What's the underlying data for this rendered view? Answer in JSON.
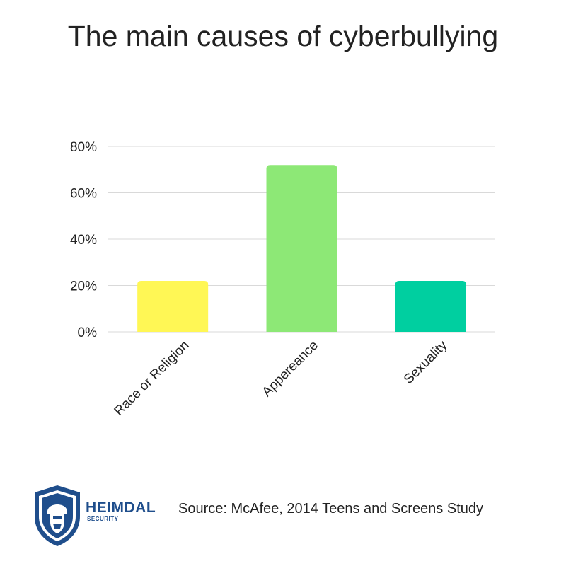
{
  "title": "The main causes of cyberbullying",
  "chart_data": {
    "type": "bar",
    "categories": [
      "Race or Religion",
      "Appereance",
      "Sexuality"
    ],
    "values": [
      22,
      72,
      22
    ],
    "colors": [
      "#fff755",
      "#8de876",
      "#00cfa0"
    ],
    "yticks": [
      "0%",
      "20%",
      "40%",
      "60%",
      "80%"
    ],
    "ylim": [
      0,
      80
    ],
    "grid": true,
    "xlabel": "",
    "ylabel": ""
  },
  "footer": {
    "brand_name": "HEIMDAL",
    "brand_sub": "SECURITY",
    "source": "Source: McAfee, 2014 Teens and Screens Study",
    "logo_icon": "heimdal-shield-logo-icon",
    "brand_color": "#1f4e8c"
  }
}
